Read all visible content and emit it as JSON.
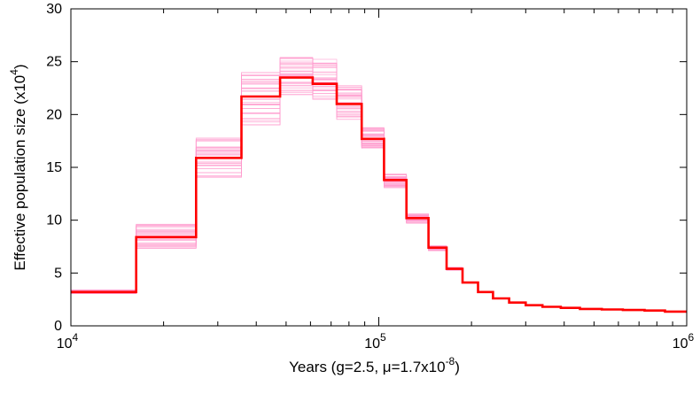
{
  "chart_data": {
    "type": "line",
    "title": "",
    "xlabel": {
      "main": "Years (g=2.5, μ=1.7x10",
      "exp": "-8",
      "close": ")"
    },
    "ylabel": {
      "main": "Effective population size (x10",
      "exp": "4",
      "close": ")"
    },
    "x_scale": "log",
    "xlim": [
      10000,
      1000000
    ],
    "ylim": [
      0,
      30
    ],
    "x_ticks": [
      {
        "value": 10000,
        "base": "10",
        "exp": "4"
      },
      {
        "value": 100000,
        "base": "10",
        "exp": "5"
      },
      {
        "value": 1000000,
        "base": "10",
        "exp": "6"
      }
    ],
    "y_ticks": [
      0,
      5,
      10,
      15,
      20,
      25,
      30
    ],
    "grid": false,
    "legend": "none",
    "series": [
      {
        "style": "step",
        "color": "#ff0000",
        "points": [
          [
            10000,
            3.2
          ],
          [
            16300,
            3.2
          ],
          [
            16300,
            8.4
          ],
          [
            25500,
            8.4
          ],
          [
            25500,
            15.9
          ],
          [
            35800,
            15.9
          ],
          [
            35800,
            21.7
          ],
          [
            47800,
            21.7
          ],
          [
            47800,
            23.5
          ],
          [
            61000,
            23.5
          ],
          [
            61000,
            22.9
          ],
          [
            73000,
            22.9
          ],
          [
            73000,
            21.0
          ],
          [
            88000,
            21.0
          ],
          [
            88000,
            17.7
          ],
          [
            104000,
            17.7
          ],
          [
            104000,
            13.8
          ],
          [
            123000,
            13.8
          ],
          [
            123000,
            10.2
          ],
          [
            145000,
            10.2
          ],
          [
            145000,
            7.4
          ],
          [
            166000,
            7.4
          ],
          [
            166000,
            5.4
          ],
          [
            187000,
            5.4
          ],
          [
            187000,
            4.1
          ],
          [
            210000,
            4.1
          ],
          [
            210000,
            3.2
          ],
          [
            235000,
            3.2
          ],
          [
            235000,
            2.6
          ],
          [
            265000,
            2.6
          ],
          [
            265000,
            2.2
          ],
          [
            300000,
            2.2
          ],
          [
            300000,
            1.95
          ],
          [
            340000,
            1.95
          ],
          [
            340000,
            1.8
          ],
          [
            390000,
            1.8
          ],
          [
            390000,
            1.7
          ],
          [
            450000,
            1.7
          ],
          [
            450000,
            1.6
          ],
          [
            530000,
            1.6
          ],
          [
            530000,
            1.55
          ],
          [
            620000,
            1.55
          ],
          [
            620000,
            1.5
          ],
          [
            730000,
            1.5
          ],
          [
            730000,
            1.45
          ],
          [
            850000,
            1.45
          ],
          [
            850000,
            1.35
          ],
          [
            1000000,
            1.35
          ]
        ]
      }
    ],
    "bootstrap": {
      "color": "#ff99cc",
      "replicates": 40,
      "segments": [
        {
          "x0": 10000,
          "x1": 16300,
          "ymin": 3.0,
          "ymax": 3.4
        },
        {
          "x0": 16300,
          "x1": 25500,
          "ymin": 7.3,
          "ymax": 9.8
        },
        {
          "x0": 25500,
          "x1": 35800,
          "ymin": 14.0,
          "ymax": 17.8
        },
        {
          "x0": 35800,
          "x1": 47800,
          "ymin": 19.0,
          "ymax": 24.0
        },
        {
          "x0": 47800,
          "x1": 61000,
          "ymin": 21.8,
          "ymax": 26.2
        },
        {
          "x0": 61000,
          "x1": 73000,
          "ymin": 21.2,
          "ymax": 25.3
        },
        {
          "x0": 73000,
          "x1": 88000,
          "ymin": 19.5,
          "ymax": 23.0
        },
        {
          "x0": 88000,
          "x1": 104000,
          "ymin": 16.6,
          "ymax": 18.8
        },
        {
          "x0": 104000,
          "x1": 123000,
          "ymin": 13.0,
          "ymax": 14.4
        },
        {
          "x0": 123000,
          "x1": 145000,
          "ymin": 9.7,
          "ymax": 10.6
        },
        {
          "x0": 145000,
          "x1": 166000,
          "ymin": 7.1,
          "ymax": 7.6
        },
        {
          "x0": 166000,
          "x1": 187000,
          "ymin": 5.25,
          "ymax": 5.55
        }
      ]
    }
  }
}
